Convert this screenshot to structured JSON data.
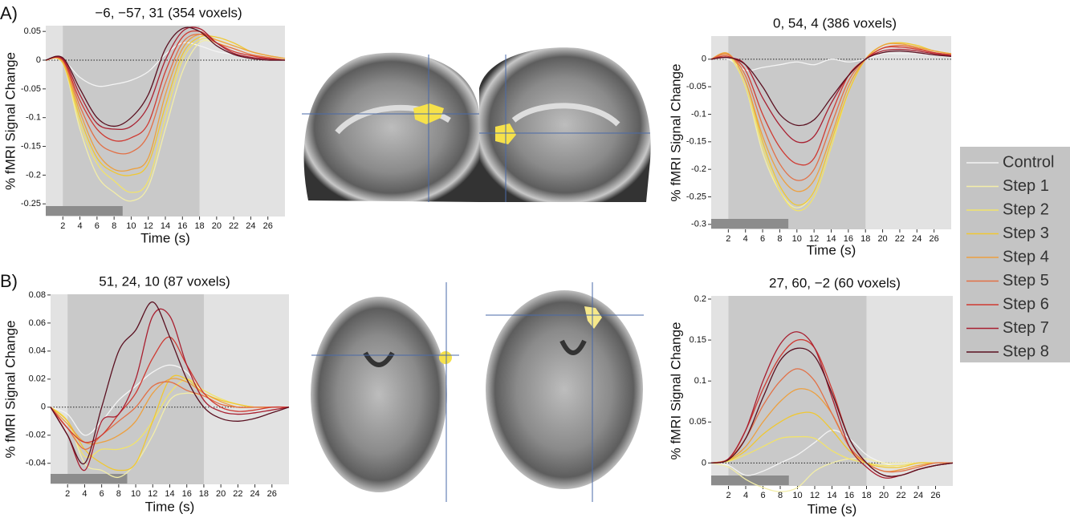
{
  "panels": [
    "A)",
    "B)"
  ],
  "chart_data": [
    {
      "type": "line",
      "title": "−6, −57, 31 (354 voxels)",
      "x_label": "Time (s)",
      "y_label": "% fMRI Signal Change",
      "x": [
        0,
        2,
        4,
        6,
        8,
        10,
        12,
        14,
        16,
        18,
        20,
        22,
        24,
        26,
        28
      ],
      "xlim": [
        0,
        28
      ],
      "xticks": [
        2,
        4,
        6,
        8,
        10,
        12,
        14,
        16,
        18,
        20,
        22,
        24,
        26
      ],
      "ylim": [
        -0.272,
        0.06
      ],
      "yticks": [
        0.05,
        0,
        -0.05,
        -0.1,
        -0.15,
        -0.2,
        -0.25
      ],
      "shaded_x": [
        2,
        18
      ],
      "bar_x": [
        0,
        9
      ],
      "zero_line": true,
      "legend": "right",
      "series": [
        {
          "name": "Control",
          "color": "#f4f4f4",
          "values": [
            0,
            0,
            -0.03,
            -0.045,
            -0.042,
            -0.035,
            -0.02,
            0.01,
            0.03,
            0.025,
            0.015,
            0.01,
            0.005,
            0.003,
            0
          ]
        },
        {
          "name": "Step 1",
          "color": "#f3eea8",
          "values": [
            0,
            -0.005,
            -0.12,
            -0.2,
            -0.23,
            -0.245,
            -0.22,
            -0.12,
            -0.02,
            0.03,
            0.03,
            0.02,
            0.01,
            0.005,
            0
          ]
        },
        {
          "name": "Step 2",
          "color": "#f2e36a",
          "values": [
            0,
            -0.005,
            -0.11,
            -0.18,
            -0.21,
            -0.23,
            -0.21,
            -0.1,
            0,
            0.035,
            0.035,
            0.025,
            0.015,
            0.008,
            0.003
          ]
        },
        {
          "name": "Step 3",
          "color": "#f0c832",
          "values": [
            0,
            -0.005,
            -0.1,
            -0.17,
            -0.195,
            -0.2,
            -0.18,
            -0.08,
            0.01,
            0.04,
            0.04,
            0.03,
            0.015,
            0.008,
            0.003
          ]
        },
        {
          "name": "Step 4",
          "color": "#eca040",
          "values": [
            0,
            -0.003,
            -0.09,
            -0.16,
            -0.19,
            -0.19,
            -0.17,
            -0.06,
            0.02,
            0.045,
            0.035,
            0.025,
            0.015,
            0.008,
            0.003
          ]
        },
        {
          "name": "Step 5",
          "color": "#e27046",
          "values": [
            0,
            0,
            -0.08,
            -0.14,
            -0.16,
            -0.16,
            -0.13,
            -0.04,
            0.03,
            0.045,
            0.03,
            0.02,
            0.01,
            0.005,
            0
          ]
        },
        {
          "name": "Step 6",
          "color": "#cf3a32",
          "values": [
            0,
            0,
            -0.07,
            -0.12,
            -0.14,
            -0.135,
            -0.11,
            -0.02,
            0.04,
            0.05,
            0.03,
            0.015,
            0.008,
            0.003,
            0
          ]
        },
        {
          "name": "Step 7",
          "color": "#a81f30",
          "values": [
            0,
            0.002,
            -0.06,
            -0.11,
            -0.12,
            -0.115,
            -0.08,
            0,
            0.05,
            0.055,
            0.03,
            0.012,
            0.005,
            0.002,
            0
          ]
        },
        {
          "name": "Step 8",
          "color": "#5a1020",
          "values": [
            0,
            0.004,
            -0.05,
            -0.1,
            -0.115,
            -0.1,
            -0.06,
            0.02,
            0.055,
            0.05,
            0.025,
            0.01,
            0.003,
            0,
            0
          ]
        }
      ]
    },
    {
      "type": "line",
      "title": "0, 54, 4 (386 voxels)",
      "x_label": "Time (s)",
      "y_label": "% fMRI Signal Change",
      "x": [
        0,
        2,
        4,
        6,
        8,
        10,
        12,
        14,
        16,
        18,
        20,
        22,
        24,
        26,
        28
      ],
      "xlim": [
        0,
        28
      ],
      "xticks": [
        2,
        4,
        6,
        8,
        10,
        12,
        14,
        16,
        18,
        20,
        22,
        24,
        26
      ],
      "ylim": [
        -0.309,
        0.042
      ],
      "yticks": [
        0,
        -0.05,
        -0.1,
        -0.15,
        -0.2,
        -0.25,
        -0.3
      ],
      "shaded_x": [
        2,
        18
      ],
      "bar_x": [
        0,
        9
      ],
      "zero_line": true,
      "series": [
        {
          "name": "Control",
          "color": "#f4f4f4",
          "values": [
            0,
            0,
            -0.02,
            -0.015,
            -0.01,
            -0.005,
            -0.01,
            0,
            -0.005,
            0,
            0.01,
            0.01,
            0.01,
            0.008,
            0.005
          ]
        },
        {
          "name": "Step 1",
          "color": "#f3eea8",
          "values": [
            0,
            0.005,
            -0.05,
            -0.17,
            -0.24,
            -0.27,
            -0.24,
            -0.15,
            -0.06,
            0,
            0.02,
            0.025,
            0.02,
            0.015,
            0.01
          ]
        },
        {
          "name": "Step 2",
          "color": "#f2e36a",
          "values": [
            0,
            0.008,
            -0.05,
            -0.16,
            -0.24,
            -0.275,
            -0.25,
            -0.16,
            -0.06,
            0,
            0.025,
            0.03,
            0.025,
            0.015,
            0.01
          ]
        },
        {
          "name": "Step 3",
          "color": "#f0c832",
          "values": [
            0,
            0.01,
            -0.04,
            -0.15,
            -0.23,
            -0.265,
            -0.24,
            -0.15,
            -0.06,
            0,
            0.025,
            0.03,
            0.025,
            0.015,
            0.01
          ]
        },
        {
          "name": "Step 4",
          "color": "#eca040",
          "values": [
            0,
            0.01,
            -0.04,
            -0.14,
            -0.21,
            -0.24,
            -0.22,
            -0.14,
            -0.05,
            0,
            0.025,
            0.028,
            0.022,
            0.015,
            0.01
          ]
        },
        {
          "name": "Step 5",
          "color": "#e27046",
          "values": [
            0,
            0.008,
            -0.03,
            -0.12,
            -0.19,
            -0.22,
            -0.2,
            -0.12,
            -0.04,
            0,
            0.02,
            0.025,
            0.02,
            0.012,
            0.008
          ]
        },
        {
          "name": "Step 6",
          "color": "#cf3a32",
          "values": [
            0,
            0.005,
            -0.02,
            -0.1,
            -0.16,
            -0.19,
            -0.18,
            -0.1,
            -0.03,
            0,
            0.02,
            0.022,
            0.018,
            0.012,
            0.008
          ]
        },
        {
          "name": "Step 7",
          "color": "#a81f30",
          "values": [
            0,
            0.003,
            -0.01,
            -0.07,
            -0.12,
            -0.15,
            -0.14,
            -0.08,
            -0.03,
            0,
            0.015,
            0.018,
            0.015,
            0.01,
            0.006
          ]
        },
        {
          "name": "Step 8",
          "color": "#5a1020",
          "values": [
            0,
            0.003,
            -0.01,
            -0.05,
            -0.1,
            -0.12,
            -0.11,
            -0.07,
            -0.03,
            0,
            0.012,
            0.015,
            0.012,
            0.008,
            0.005
          ]
        }
      ]
    },
    {
      "type": "line",
      "title": "51, 24, 10 (87 voxels)",
      "x_label": "Time (s)",
      "y_label": "% fMRI Signal Change",
      "x": [
        0,
        2,
        4,
        6,
        8,
        10,
        12,
        14,
        16,
        18,
        20,
        22,
        24,
        26,
        28
      ],
      "xlim": [
        0,
        28
      ],
      "xticks": [
        2,
        4,
        6,
        8,
        10,
        12,
        14,
        16,
        18,
        20,
        22,
        24,
        26
      ],
      "ylim": [
        -0.055,
        0.0805
      ],
      "yticks": [
        0.08,
        0.06,
        0.04,
        0.02,
        0,
        -0.02,
        -0.04
      ],
      "shaded_x": [
        2,
        18
      ],
      "bar_x": [
        0,
        9
      ],
      "zero_line": true,
      "series": [
        {
          "name": "Control",
          "color": "#f4f4f4",
          "values": [
            0,
            -0.005,
            -0.02,
            -0.01,
            0.005,
            0.015,
            0.025,
            0.03,
            0.025,
            0.01,
            0.005,
            0.002,
            0,
            0,
            0
          ]
        },
        {
          "name": "Step 1",
          "color": "#f3eea8",
          "values": [
            0,
            -0.01,
            -0.04,
            -0.045,
            -0.05,
            -0.04,
            -0.02,
            0.005,
            0.01,
            0.008,
            0.005,
            0.002,
            0,
            0,
            0
          ]
        },
        {
          "name": "Step 2",
          "color": "#f2e36a",
          "values": [
            0,
            -0.01,
            -0.035,
            -0.03,
            -0.03,
            -0.025,
            -0.01,
            0.01,
            0.02,
            0.012,
            0.006,
            0.002,
            0,
            0,
            0
          ]
        },
        {
          "name": "Step 3",
          "color": "#f0c832",
          "values": [
            0,
            -0.01,
            -0.03,
            -0.04,
            -0.045,
            -0.04,
            -0.01,
            0.02,
            0.02,
            0.01,
            0.005,
            0.002,
            0,
            0,
            0
          ]
        },
        {
          "name": "Step 4",
          "color": "#eca040",
          "values": [
            0,
            -0.012,
            -0.025,
            -0.025,
            -0.02,
            -0.01,
            0.01,
            0.02,
            0.018,
            0.01,
            0.004,
            0,
            0,
            0,
            0
          ]
        },
        {
          "name": "Step 5",
          "color": "#e27046",
          "values": [
            0,
            -0.015,
            -0.03,
            -0.02,
            -0.01,
            0,
            0.015,
            0.018,
            0.012,
            0.008,
            0.002,
            0,
            0,
            0,
            0
          ]
        },
        {
          "name": "Step 6",
          "color": "#cf3a32",
          "values": [
            0,
            -0.015,
            -0.025,
            -0.02,
            -0.005,
            0.01,
            0.035,
            0.05,
            0.03,
            0.01,
            0,
            -0.003,
            -0.002,
            0,
            0
          ]
        },
        {
          "name": "Step 7",
          "color": "#a81f30",
          "values": [
            0,
            -0.02,
            -0.045,
            -0.01,
            -0.005,
            0.02,
            0.065,
            0.065,
            0.03,
            0.005,
            -0.003,
            -0.005,
            -0.004,
            -0.002,
            0
          ]
        },
        {
          "name": "Step 8",
          "color": "#5a1020",
          "values": [
            0,
            -0.02,
            -0.04,
            0,
            0.04,
            0.055,
            0.075,
            0.05,
            0.02,
            0,
            -0.008,
            -0.01,
            -0.008,
            -0.004,
            0
          ]
        }
      ]
    },
    {
      "type": "line",
      "title": "27, 60, −2 (60 voxels)",
      "x_label": "Time (s)",
      "y_label": "% fMRI Signal Change",
      "x": [
        0,
        2,
        4,
        6,
        8,
        10,
        12,
        14,
        16,
        18,
        20,
        22,
        24,
        26,
        28
      ],
      "xlim": [
        0,
        28
      ],
      "xticks": [
        2,
        4,
        6,
        8,
        10,
        12,
        14,
        16,
        18,
        20,
        22,
        24,
        26
      ],
      "ylim": [
        -0.028,
        0.2039
      ],
      "yticks": [
        0.2,
        0.15,
        0.1,
        0.05,
        0
      ],
      "shaded_x": [
        2,
        18
      ],
      "bar_x": [
        0,
        9
      ],
      "zero_line": true,
      "series": [
        {
          "name": "Control",
          "color": "#f4f4f4",
          "values": [
            0,
            -0.003,
            -0.015,
            -0.01,
            0,
            0.01,
            0.025,
            0.04,
            0.03,
            0.01,
            0,
            -0.005,
            -0.005,
            0,
            0
          ]
        },
        {
          "name": "Step 1",
          "color": "#f3eea8",
          "values": [
            0,
            -0.005,
            -0.02,
            -0.03,
            -0.035,
            -0.03,
            -0.01,
            0,
            0.005,
            0.005,
            0,
            0,
            0,
            0,
            0
          ]
        },
        {
          "name": "Step 2",
          "color": "#f2e36a",
          "values": [
            0,
            0.002,
            0.01,
            0.02,
            0.03,
            0.032,
            0.03,
            0.015,
            0.005,
            0,
            -0.003,
            -0.003,
            0,
            0,
            0
          ]
        },
        {
          "name": "Step 3",
          "color": "#f0c832",
          "values": [
            0,
            0.003,
            0.015,
            0.035,
            0.05,
            0.06,
            0.06,
            0.04,
            0.015,
            0,
            -0.005,
            -0.005,
            0,
            0,
            0
          ]
        },
        {
          "name": "Step 4",
          "color": "#eca040",
          "values": [
            0,
            0.004,
            0.02,
            0.05,
            0.075,
            0.09,
            0.085,
            0.06,
            0.02,
            0,
            -0.01,
            -0.008,
            -0.003,
            0,
            0
          ]
        },
        {
          "name": "Step 5",
          "color": "#e27046",
          "values": [
            0,
            0.005,
            0.03,
            0.07,
            0.1,
            0.115,
            0.1,
            0.06,
            0.02,
            0,
            -0.01,
            -0.01,
            -0.005,
            0,
            0
          ]
        },
        {
          "name": "Step 6",
          "color": "#cf3a32",
          "values": [
            0,
            0.005,
            0.04,
            0.09,
            0.13,
            0.15,
            0.14,
            0.09,
            0.03,
            0,
            -0.015,
            -0.015,
            -0.008,
            -0.003,
            0
          ]
        },
        {
          "name": "Step 7",
          "color": "#a81f30",
          "values": [
            0,
            0.005,
            0.04,
            0.1,
            0.145,
            0.16,
            0.14,
            0.08,
            0.02,
            -0.005,
            -0.018,
            -0.015,
            -0.008,
            -0.003,
            0
          ]
        },
        {
          "name": "Step 8",
          "color": "#5a1020",
          "values": [
            0,
            0.004,
            0.03,
            0.08,
            0.125,
            0.14,
            0.13,
            0.085,
            0.03,
            0,
            -0.015,
            -0.015,
            -0.008,
            -0.003,
            0
          ]
        }
      ]
    }
  ]
}
